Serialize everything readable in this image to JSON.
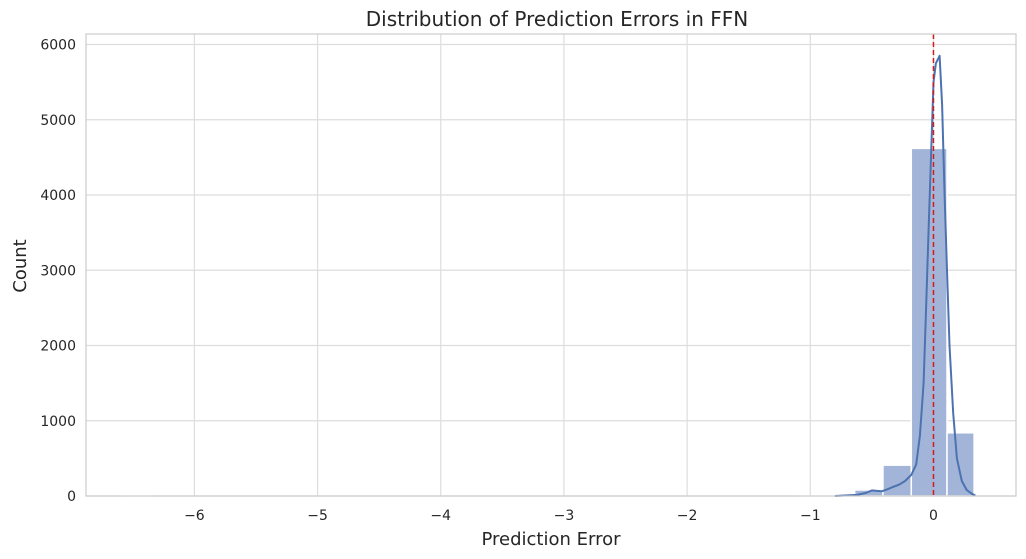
{
  "chart_data": {
    "type": "histogram",
    "title": "Distribution of Prediction Errors in FFN",
    "xlabel": "Prediction Error",
    "ylabel": "Count",
    "xlim": [
      -6.88,
      0.67
    ],
    "ylim": [
      0,
      6140
    ],
    "xticks": [
      -6,
      -5,
      -4,
      -3,
      -2,
      -1,
      0
    ],
    "xtick_labels": [
      "−6",
      "−5",
      "−4",
      "−3",
      "−2",
      "−1",
      "0"
    ],
    "yticks": [
      0,
      1000,
      2000,
      3000,
      4000,
      5000,
      6000
    ],
    "ytick_labels": [
      "0",
      "1000",
      "2000",
      "3000",
      "4000",
      "5000",
      "6000"
    ],
    "grid": true,
    "bins": [
      {
        "x0": -6.58,
        "x1": -6.35,
        "count": 2
      },
      {
        "x0": -6.35,
        "x1": -6.12,
        "count": 0
      },
      {
        "x0": -6.12,
        "x1": -5.89,
        "count": 0
      },
      {
        "x0": -5.89,
        "x1": -5.66,
        "count": 0
      },
      {
        "x0": -5.66,
        "x1": -5.44,
        "count": 0
      },
      {
        "x0": -5.44,
        "x1": -5.21,
        "count": 0
      },
      {
        "x0": -5.21,
        "x1": -4.98,
        "count": 0
      },
      {
        "x0": -4.98,
        "x1": -4.75,
        "count": 0
      },
      {
        "x0": -4.75,
        "x1": -4.52,
        "count": 0
      },
      {
        "x0": -4.52,
        "x1": -4.29,
        "count": 0
      },
      {
        "x0": -4.29,
        "x1": -4.07,
        "count": 0
      },
      {
        "x0": -4.07,
        "x1": -3.84,
        "count": 0
      },
      {
        "x0": -3.84,
        "x1": -3.61,
        "count": 0
      },
      {
        "x0": -3.61,
        "x1": -3.38,
        "count": 0
      },
      {
        "x0": -3.38,
        "x1": -3.15,
        "count": 0
      },
      {
        "x0": -3.15,
        "x1": -2.92,
        "count": 0
      },
      {
        "x0": -2.92,
        "x1": -2.7,
        "count": 0
      },
      {
        "x0": -2.7,
        "x1": -2.47,
        "count": 0
      },
      {
        "x0": -2.47,
        "x1": -2.24,
        "count": 0
      },
      {
        "x0": -2.24,
        "x1": -2.01,
        "count": 0
      },
      {
        "x0": -2.01,
        "x1": -1.78,
        "count": 0
      },
      {
        "x0": -1.78,
        "x1": -1.55,
        "count": 0
      },
      {
        "x0": -1.55,
        "x1": -1.33,
        "count": 0
      },
      {
        "x0": -1.33,
        "x1": -1.1,
        "count": 0
      },
      {
        "x0": -1.1,
        "x1": -0.87,
        "count": 1
      },
      {
        "x0": -0.87,
        "x1": -0.64,
        "count": 8
      },
      {
        "x0": -0.64,
        "x1": -0.41,
        "count": 80
      },
      {
        "x0": -0.41,
        "x1": -0.18,
        "count": 410
      },
      {
        "x0": -0.18,
        "x1": 0.11,
        "count": 4620
      },
      {
        "x0": 0.11,
        "x1": 0.33,
        "count": 840
      }
    ],
    "bar_color": "#a2b5d8",
    "kde": {
      "color": "#4c72b0",
      "points": [
        [
          -0.8,
          0
        ],
        [
          -0.7,
          8
        ],
        [
          -0.62,
          15
        ],
        [
          -0.55,
          40
        ],
        [
          -0.5,
          75
        ],
        [
          -0.46,
          68
        ],
        [
          -0.42,
          62
        ],
        [
          -0.38,
          85
        ],
        [
          -0.33,
          120
        ],
        [
          -0.28,
          150
        ],
        [
          -0.23,
          200
        ],
        [
          -0.18,
          280
        ],
        [
          -0.14,
          420
        ],
        [
          -0.11,
          800
        ],
        [
          -0.08,
          1500
        ],
        [
          -0.06,
          2500
        ],
        [
          -0.04,
          3500
        ],
        [
          -0.02,
          4500
        ],
        [
          0.0,
          5500
        ],
        [
          0.02,
          5750
        ],
        [
          0.05,
          5850
        ],
        [
          0.07,
          5200
        ],
        [
          0.09,
          4000
        ],
        [
          0.11,
          3000
        ],
        [
          0.13,
          2000
        ],
        [
          0.16,
          1100
        ],
        [
          0.19,
          500
        ],
        [
          0.23,
          200
        ],
        [
          0.27,
          80
        ],
        [
          0.31,
          30
        ],
        [
          0.34,
          5
        ]
      ]
    },
    "reference_line": {
      "x": 0,
      "color": "#d7191c",
      "style": "dashed"
    }
  }
}
